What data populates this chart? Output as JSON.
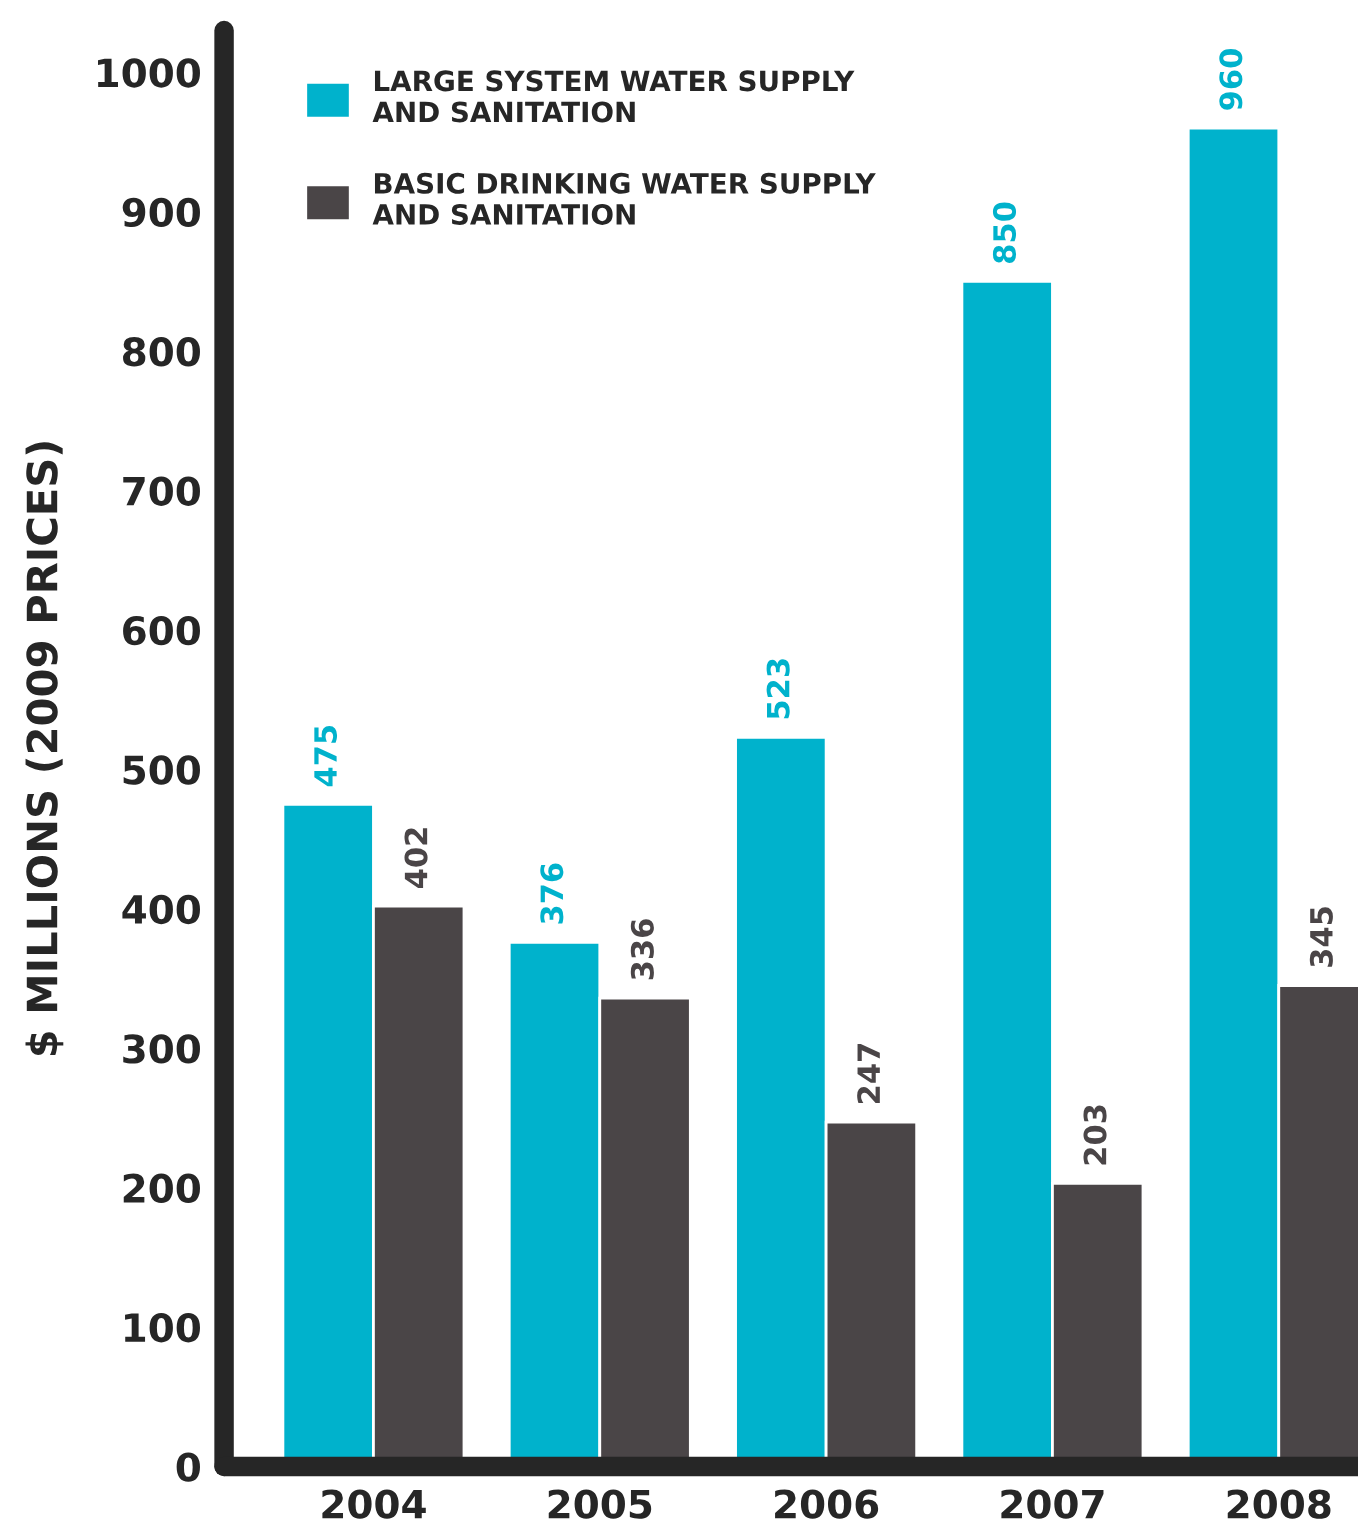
{
  "chart_data": {
    "type": "bar",
    "ylabel": "$ MILLIONS (2009 PRICES)",
    "categories": [
      "2004",
      "2005",
      "2006",
      "2007",
      "2008"
    ],
    "series": [
      {
        "name": "LARGE SYSTEM WATER SUPPLY\nAND SANITATION",
        "color": "#00b2cc",
        "values": [
          475,
          376,
          523,
          850,
          960
        ]
      },
      {
        "name": "BASIC DRINKING WATER SUPPLY\nAND SANITATION",
        "color": "#4a4547",
        "values": [
          402,
          336,
          247,
          203,
          345
        ]
      }
    ],
    "ylim": [
      0,
      1030
    ],
    "yticks": [
      0,
      100,
      200,
      300,
      400,
      500,
      600,
      700,
      800,
      900,
      1000
    ],
    "data_labels": true,
    "legend": "top left",
    "grid": false
  }
}
